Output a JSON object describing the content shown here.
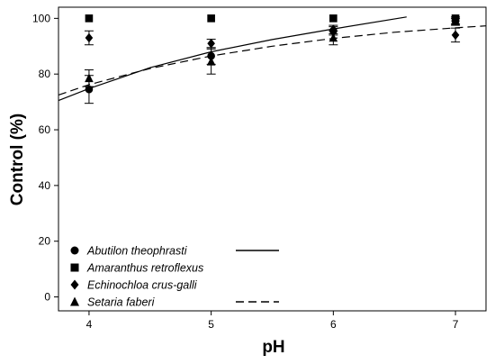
{
  "chart_data": {
    "type": "scatter",
    "xlabel": "pH",
    "ylabel": "Control (%)",
    "xlim": [
      3.75,
      7.25
    ],
    "ylim": [
      -5,
      104
    ],
    "x_ticks": [
      4,
      5,
      6,
      7
    ],
    "y_ticks": [
      0,
      20,
      40,
      60,
      80,
      100
    ],
    "legend_position": "bottom-left",
    "grid": false,
    "series": [
      {
        "name": "Abutilon theophrasti",
        "marker": "circle",
        "line": "solid",
        "x": [
          4,
          5,
          6,
          7
        ],
        "y": [
          74.5,
          86.5,
          95.5,
          99
        ],
        "error": [
          5,
          3,
          1.5,
          1
        ],
        "fit": {
          "x": [
            3.75,
            4,
            4.5,
            5,
            5.5,
            6,
            6.6
          ],
          "y": [
            70.5,
            74.8,
            82.3,
            88.0,
            92.4,
            96.2,
            100.5
          ]
        }
      },
      {
        "name": "Amaranthus retroflexus",
        "marker": "square",
        "line": "none",
        "x": [
          4,
          5,
          6,
          7
        ],
        "y": [
          100,
          100,
          100,
          100
        ],
        "error": [
          0,
          0,
          0,
          0
        ]
      },
      {
        "name": "Echinochloa crus-galli",
        "marker": "diamond",
        "line": "none",
        "x": [
          4,
          5,
          6,
          7
        ],
        "y": [
          93,
          91,
          96,
          94
        ],
        "error": [
          2.5,
          1.5,
          1.5,
          2.5
        ]
      },
      {
        "name": "Setaria faberi",
        "marker": "triangle",
        "line": "dashed",
        "x": [
          4,
          5,
          6,
          7
        ],
        "y": [
          78.5,
          84.5,
          93,
          99
        ],
        "error": [
          3,
          4.5,
          2.5,
          1.5
        ],
        "fit": {
          "x": [
            3.75,
            4,
            4.5,
            5,
            5.5,
            6,
            6.5,
            7,
            7.25
          ],
          "y": [
            72.5,
            76.2,
            82.0,
            86.5,
            90.0,
            92.8,
            95.0,
            96.6,
            97.3
          ]
        }
      }
    ]
  }
}
